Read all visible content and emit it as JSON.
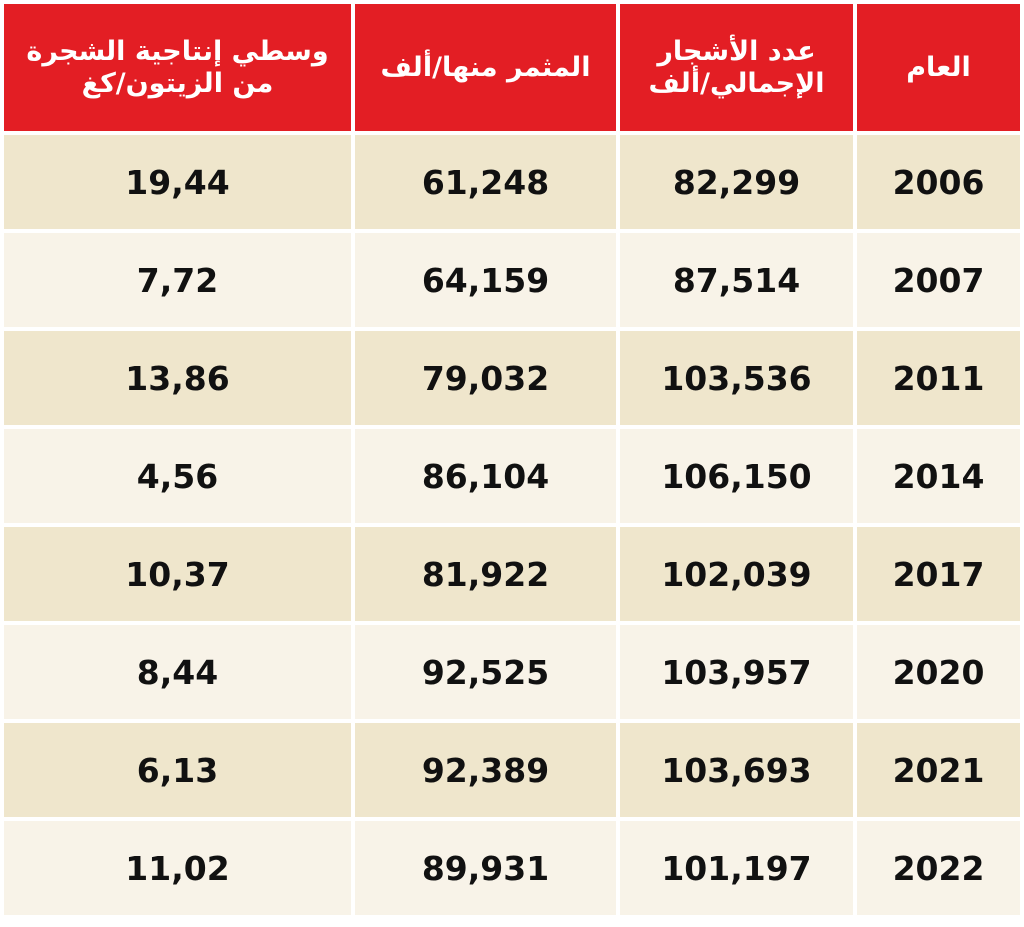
{
  "table": {
    "header": [
      "العام",
      "عدد الأشجار الإجمالي/ألف",
      "المثمر منها/ألف",
      "وسطي إنتاجية الشجرة من الزيتون/كغ"
    ],
    "rows": [
      [
        "2006",
        "82,299",
        "61,248",
        "19,44"
      ],
      [
        "2007",
        "87,514",
        "64,159",
        "7,72"
      ],
      [
        "2011",
        "103,536",
        "79,032",
        "13,86"
      ],
      [
        "2014",
        "106,150",
        "86,104",
        "4,56"
      ],
      [
        "2017",
        "102,039",
        "81,922",
        "10,37"
      ],
      [
        "2020",
        "103,957",
        "92,525",
        "8,44"
      ],
      [
        "2021",
        "103,693",
        "92,389",
        "6,13"
      ],
      [
        "2022",
        "101,197",
        "89,931",
        "11,02"
      ]
    ]
  }
}
